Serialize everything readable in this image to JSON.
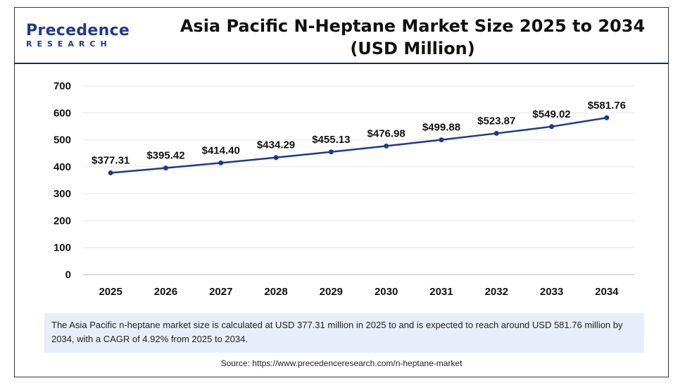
{
  "brand": {
    "name": "Precedence",
    "sub": "RESEARCH"
  },
  "title": "Asia Pacific N-Heptane Market Size 2025 to 2034 (USD Million)",
  "note": "The Asia Pacific n-heptane market size is calculated at USD 377.31 million in 2025 to and is expected to reach around USD 581.76 million by 2034, with a CAGR of 4.92% from 2025 to 2034.",
  "source": "Source: https://www.precedenceresearch.com/n-heptane-market",
  "colors": {
    "line": "#1e3a8a",
    "accent": "#1a2a5a",
    "note_bg": "#e8eef9"
  },
  "chart_data": {
    "type": "line",
    "categories": [
      "2025",
      "2026",
      "2027",
      "2028",
      "2029",
      "2030",
      "2031",
      "2032",
      "2033",
      "2034"
    ],
    "values": [
      377.31,
      395.42,
      414.4,
      434.29,
      455.13,
      476.98,
      499.88,
      523.87,
      549.02,
      581.76
    ],
    "data_labels": [
      "$377.31",
      "$395.42",
      "$414.40",
      "$434.29",
      "$455.13",
      "$476.98",
      "$499.88",
      "$523.87",
      "$549.02",
      "$581.76"
    ],
    "ylim": [
      0,
      700
    ],
    "yticks": [
      0,
      100,
      200,
      300,
      400,
      500,
      600,
      700
    ],
    "grid": true,
    "legend": "none",
    "xlabel": "",
    "ylabel": ""
  }
}
